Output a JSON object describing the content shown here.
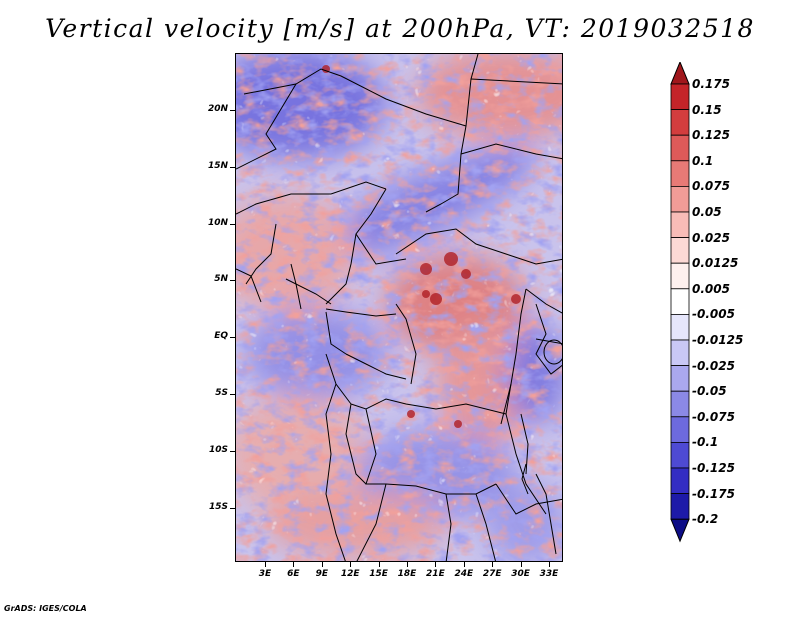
{
  "title": "Vertical velocity [m/s] at 200hPa, VT: 2019032518",
  "credit": "GrADS: IGES/COLA",
  "map": {
    "lat_labels": [
      "20N",
      "15N",
      "10N",
      "5N",
      "EQ",
      "5S",
      "10S",
      "15S"
    ],
    "lon_labels": [
      "3E",
      "6E",
      "9E",
      "12E",
      "15E",
      "18E",
      "21E",
      "24E",
      "27E",
      "30E",
      "33E"
    ],
    "variable": "vertical velocity",
    "units": "m/s",
    "level": "200hPa",
    "valid_time": "2019032518"
  },
  "colorbar": {
    "labels": [
      "0.175",
      "0.15",
      "0.125",
      "0.1",
      "0.075",
      "0.05",
      "0.025",
      "0.0125",
      "0.005",
      "-0.005",
      "-0.0125",
      "-0.025",
      "-0.05",
      "-0.075",
      "-0.1",
      "-0.125",
      "-0.175",
      "-0.2"
    ],
    "colors": [
      "#a0171c",
      "#c42429",
      "#d33d3e",
      "#de5a59",
      "#e87a76",
      "#f19c97",
      "#f8bcb7",
      "#fcd9d5",
      "#fdf0ee",
      "#ffffff",
      "#e6e6fb",
      "#c9c8f5",
      "#aaa8ee",
      "#8b89e6",
      "#6d6ade",
      "#4e4ad3",
      "#332dc3",
      "#1d1aa8",
      "#0d0d86"
    ]
  }
}
